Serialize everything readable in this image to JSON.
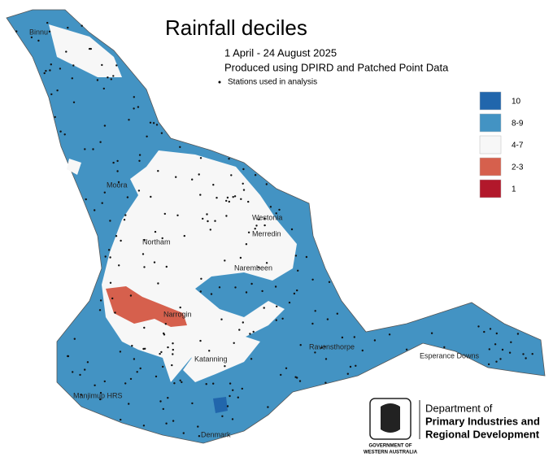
{
  "title": "Rainfall deciles",
  "subtitle": [
    "1 April - 24 August 2025",
    "Produced using DPIRD and Patched Point Data"
  ],
  "stations_note": "Stations used in analysis",
  "legend": [
    {
      "label": "10",
      "color": "#2166ac"
    },
    {
      "label": "8-9",
      "color": "#4393c3"
    },
    {
      "label": "4-7",
      "color": "#f7f7f7"
    },
    {
      "label": "2-3",
      "color": "#d6604d"
    },
    {
      "label": "1",
      "color": "#b2182b"
    }
  ],
  "places": [
    "Binnu",
    "Moora",
    "Northam",
    "Westonia",
    "Merredin",
    "Narembeen",
    "Narrogin",
    "Katanning",
    "Ravensthorpe",
    "Esperance Downs",
    "Manjimup HRS",
    "Denmark"
  ],
  "logo": {
    "department": [
      "Department of",
      "Primary Industries and",
      "Regional Development"
    ],
    "government": [
      "GOVERNMENT OF",
      "WESTERN AUSTRALIA"
    ]
  }
}
